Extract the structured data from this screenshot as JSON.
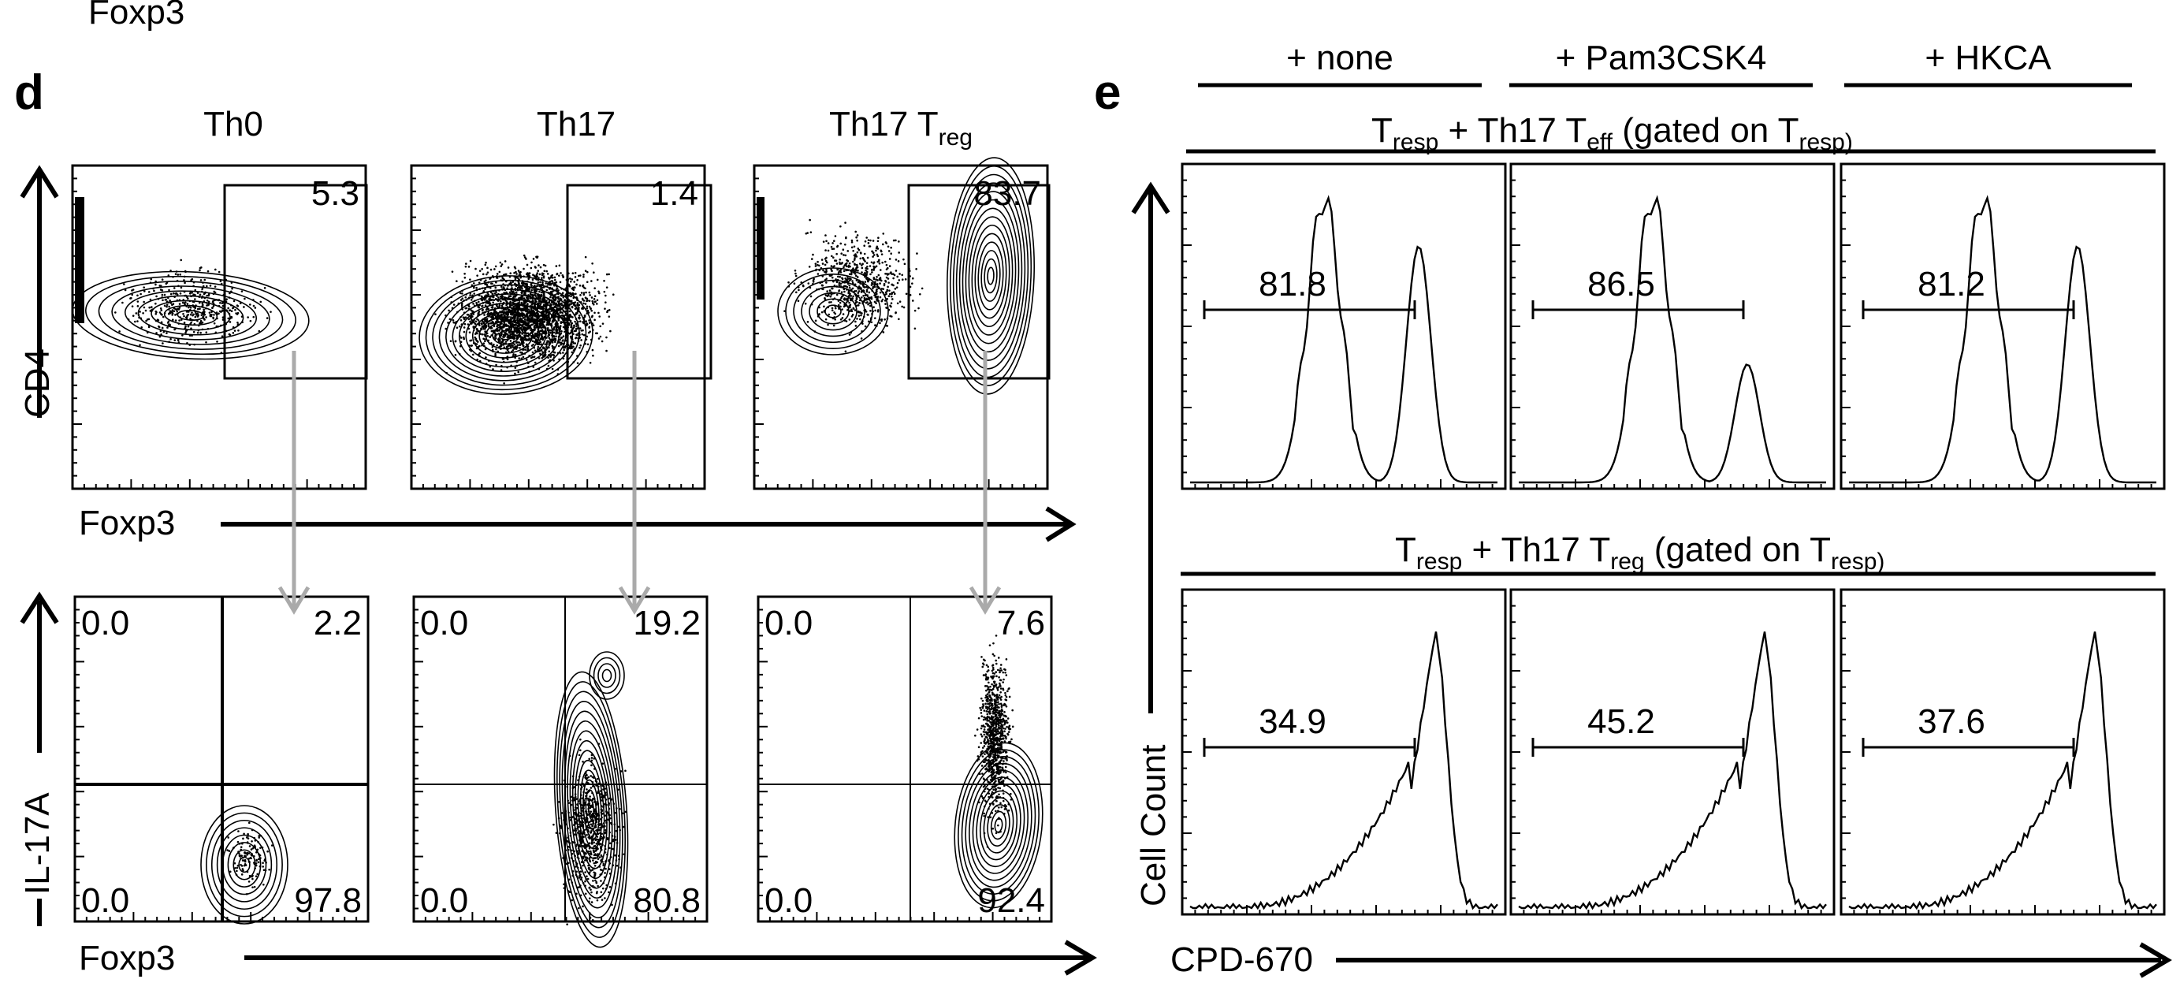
{
  "figure": {
    "top_cut_label": "Foxp3",
    "panel_d": {
      "letter": "d",
      "columns": [
        {
          "title": "Th0",
          "subscript": ""
        },
        {
          "title": "Th17",
          "subscript": ""
        },
        {
          "title": "Th17  T",
          "subscript": "reg"
        }
      ],
      "top_row": {
        "y_label": "CD4",
        "x_label": "Foxp3",
        "gate_values": [
          "5.3",
          "1.4",
          "83.7"
        ]
      },
      "bottom_row": {
        "y_label": "IL-17A",
        "x_label": "Foxp3",
        "quadrants": [
          {
            "ul": "0.0",
            "ur": "2.2",
            "ll": "0.0",
            "lr": "97.8"
          },
          {
            "ul": "0.0",
            "ur": "19.2",
            "ll": "0.0",
            "lr": "80.8"
          },
          {
            "ul": "0.0",
            "ur": "7.6",
            "ll": "0.0",
            "lr": "92.4"
          }
        ]
      }
    },
    "panel_e": {
      "letter": "e",
      "conditions": [
        "+ none",
        "+ Pam3CSK4",
        "+ HKCA"
      ],
      "row1_title": {
        "a": "T",
        "a_sub": "resp",
        "b": " + Th17 T",
        "b_sub": "eff",
        "c": " (gated on T",
        "c_sub": "resp)"
      },
      "row2_title": {
        "a": "T",
        "a_sub": "resp",
        "b": " + Th17 T",
        "b_sub": "reg",
        "c": " (gated on T",
        "c_sub": "resp)"
      },
      "row1_values": [
        "81.8",
        "86.5",
        "81.2"
      ],
      "row2_values": [
        "34.9",
        "45.2",
        "37.6"
      ],
      "y_label": "Cell Count",
      "x_label": "CPD-670"
    },
    "colors": {
      "gate_arrow": "#aaaaaa",
      "ink": "#000000"
    }
  }
}
